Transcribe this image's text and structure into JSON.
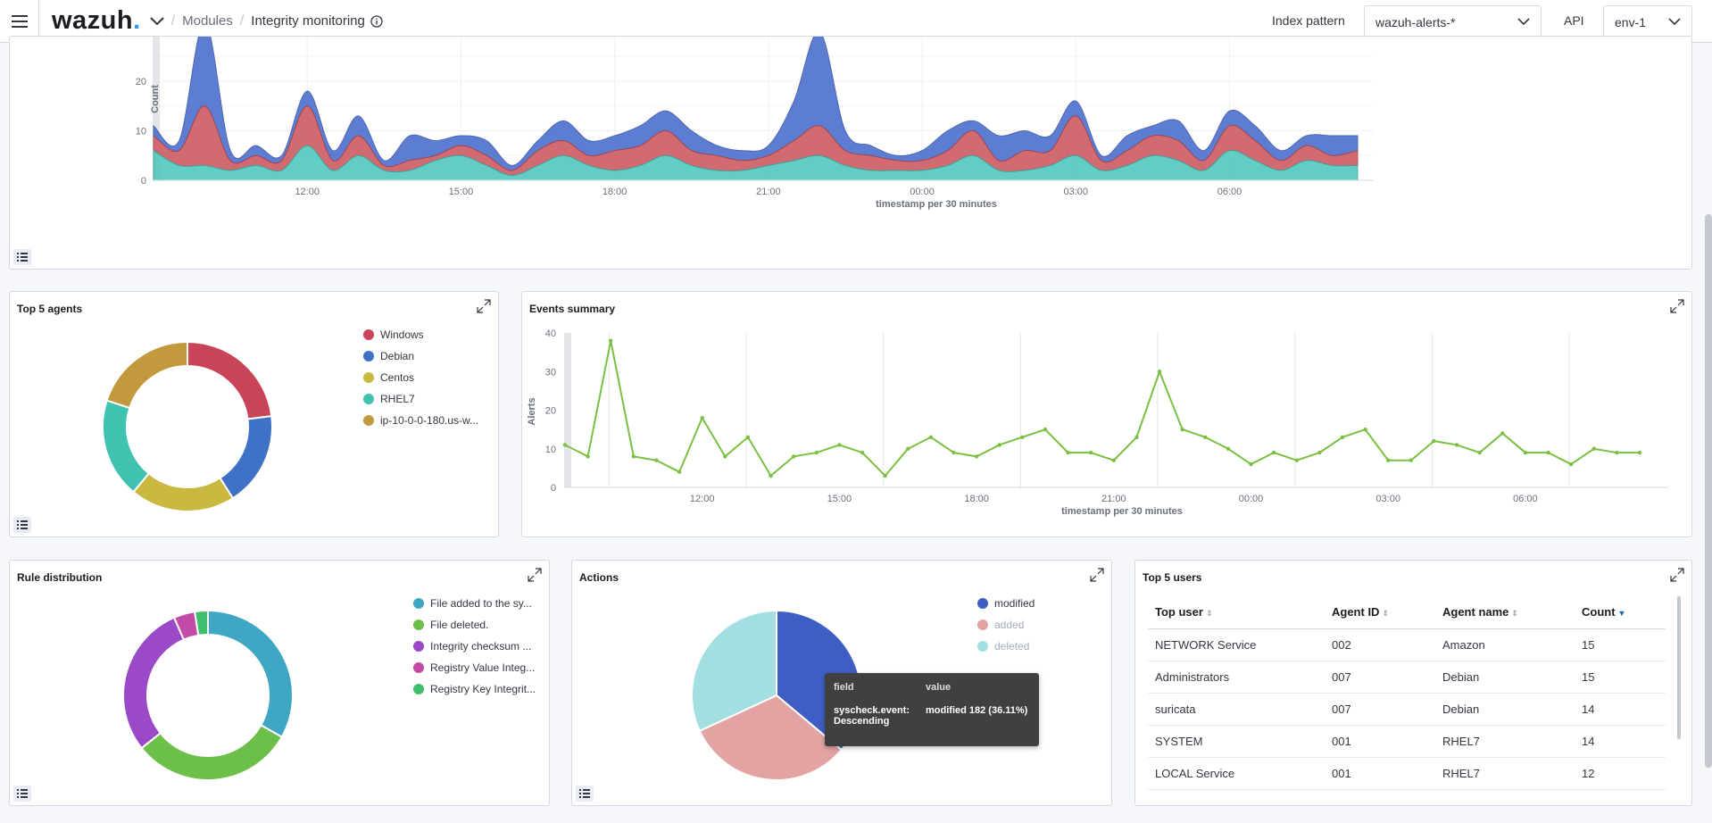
{
  "header": {
    "logo": "wazuh",
    "breadcrumb": [
      "Modules",
      "Integrity monitoring"
    ],
    "index_pattern_label": "Index pattern",
    "index_pattern_value": "wazuh-alerts-*",
    "api_label": "API",
    "api_value": "env-1"
  },
  "colors": {
    "blue": "#4c6fcf",
    "red": "#cd5c62",
    "teal": "#52c8be",
    "green": "#7ac143"
  },
  "alerts_chart": {
    "ylabel": "Count",
    "xlabel": "timestamp per 30 minutes",
    "y_ticks": [
      "0",
      "10",
      "20"
    ],
    "x_ticks": [
      "12:00",
      "15:00",
      "18:00",
      "21:00",
      "00:00",
      "03:00",
      "06:00"
    ],
    "chart_data": {
      "type": "area",
      "x": [
        "09:00",
        "09:30",
        "10:00",
        "10:30",
        "11:00",
        "11:30",
        "12:00",
        "12:30",
        "13:00",
        "13:30",
        "14:00",
        "14:30",
        "15:00",
        "15:30",
        "16:00",
        "16:30",
        "17:00",
        "17:30",
        "18:00",
        "18:30",
        "19:00",
        "19:30",
        "20:00",
        "20:30",
        "21:00",
        "21:30",
        "22:00",
        "22:30",
        "23:00",
        "23:30",
        "00:00",
        "00:30",
        "01:00",
        "01:30",
        "02:00",
        "02:30",
        "03:00",
        "03:30",
        "04:00",
        "04:30",
        "05:00",
        "05:30",
        "06:00",
        "06:30",
        "07:00",
        "07:30",
        "08:00",
        "08:30"
      ],
      "series": [
        {
          "values": [
            6,
            3,
            3,
            2,
            3,
            2,
            7,
            2,
            5,
            2,
            2,
            4,
            5,
            3,
            1,
            3,
            5,
            3,
            2,
            3,
            5,
            3,
            2,
            2,
            3,
            4,
            5,
            3,
            2,
            2,
            2,
            3,
            5,
            2,
            2,
            3,
            5,
            2,
            3,
            5,
            4,
            2,
            6,
            4,
            2,
            4,
            3,
            3
          ]
        },
        {
          "values": [
            3,
            3,
            12,
            2,
            2,
            2,
            8,
            2,
            4,
            1,
            2,
            1,
            2,
            2,
            1,
            3,
            3,
            2,
            4,
            4,
            5,
            3,
            3,
            2,
            2,
            4,
            6,
            3,
            3,
            2,
            2,
            3,
            5,
            2,
            4,
            3,
            8,
            2,
            3,
            4,
            4,
            2,
            5,
            4,
            2,
            3,
            2,
            3
          ]
        },
        {
          "values": [
            2,
            2,
            17,
            2,
            2,
            1,
            3,
            2,
            4,
            1,
            5,
            3,
            2,
            3,
            1,
            2,
            4,
            3,
            3,
            4,
            4,
            4,
            2,
            2,
            2,
            8,
            19,
            4,
            2,
            1,
            2,
            4,
            2,
            5,
            4,
            3,
            3,
            1,
            3,
            2,
            4,
            2,
            3,
            3,
            2,
            2,
            4,
            3
          ]
        }
      ],
      "ylim": [
        0,
        29
      ]
    }
  },
  "top_agents": {
    "title": "Top 5 agents",
    "chart_data": {
      "type": "pie",
      "labels": [
        "Windows",
        "Debian",
        "Centos",
        "RHEL7",
        "ip-10-0-0-180.us-w..."
      ],
      "values": [
        23,
        18,
        20,
        19,
        20
      ],
      "colors": [
        "#c94456",
        "#3f72c6",
        "#c9b940",
        "#40c2b0",
        "#c29a3d"
      ]
    }
  },
  "events_summary": {
    "title": "Events summary",
    "ylabel": "Alerts",
    "xlabel": "timestamp per 30 minutes",
    "y_ticks": [
      "0",
      "10",
      "20",
      "30",
      "40"
    ],
    "x_ticks": [
      "12:00",
      "15:00",
      "18:00",
      "21:00",
      "00:00",
      "03:00",
      "06:00"
    ],
    "chart_data": {
      "type": "line",
      "x": [
        "09:00",
        "09:30",
        "10:00",
        "10:30",
        "11:00",
        "11:30",
        "12:00",
        "12:30",
        "13:00",
        "13:30",
        "14:00",
        "14:30",
        "15:00",
        "15:30",
        "16:00",
        "16:30",
        "17:00",
        "17:30",
        "18:00",
        "18:30",
        "19:00",
        "19:30",
        "20:00",
        "20:30",
        "21:00",
        "21:30",
        "22:00",
        "22:30",
        "23:00",
        "23:30",
        "00:00",
        "00:30",
        "01:00",
        "01:30",
        "02:00",
        "02:30",
        "03:00",
        "03:30",
        "04:00",
        "04:30",
        "05:00",
        "05:30",
        "06:00",
        "06:30",
        "07:00",
        "07:30",
        "08:00",
        "08:30"
      ],
      "values": [
        11,
        8,
        38,
        8,
        7,
        4,
        18,
        8,
        13,
        3,
        8,
        9,
        11,
        9,
        3,
        10,
        13,
        9,
        8,
        11,
        13,
        15,
        9,
        9,
        7,
        13,
        30,
        15,
        13,
        10,
        6,
        9,
        7,
        9,
        13,
        15,
        7,
        7,
        12,
        11,
        9,
        14,
        9,
        9,
        6,
        10,
        9,
        9
      ],
      "ylim": [
        0,
        40
      ]
    }
  },
  "rule_distribution": {
    "title": "Rule distribution",
    "chart_data": {
      "type": "pie",
      "labels": [
        "File added to the sy...",
        "File deleted.",
        "Integrity checksum ...",
        "Registry Value Integ...",
        "Registry Key Integrit..."
      ],
      "values": [
        33,
        31,
        29,
        4,
        2.5
      ],
      "colors": [
        "#3fa7c4",
        "#6cc04a",
        "#9a4ac6",
        "#c44aa8",
        "#3fbf6b"
      ]
    }
  },
  "actions": {
    "title": "Actions",
    "chart_data": {
      "type": "pie",
      "labels": [
        "modified",
        "added",
        "deleted"
      ],
      "values": [
        36.11,
        32,
        31.89
      ],
      "colors": [
        "#3f5ec4",
        "#e4a3a3",
        "#a3dfe0"
      ]
    },
    "tooltip": {
      "head_field": "field",
      "head_value": "value",
      "row_field": "syscheck.event: Descending",
      "row_value": "modified  182 (36.11%)"
    }
  },
  "top_users": {
    "title": "Top 5 users",
    "columns": [
      "Top user",
      "Agent ID",
      "Agent name",
      "Count"
    ],
    "rows": [
      [
        "NETWORK Service",
        "002",
        "Amazon",
        "15"
      ],
      [
        "Administrators",
        "007",
        "Debian",
        "15"
      ],
      [
        "suricata",
        "007",
        "Debian",
        "14"
      ],
      [
        "SYSTEM",
        "001",
        "RHEL7",
        "14"
      ],
      [
        "LOCAL Service",
        "001",
        "RHEL7",
        "12"
      ]
    ]
  }
}
